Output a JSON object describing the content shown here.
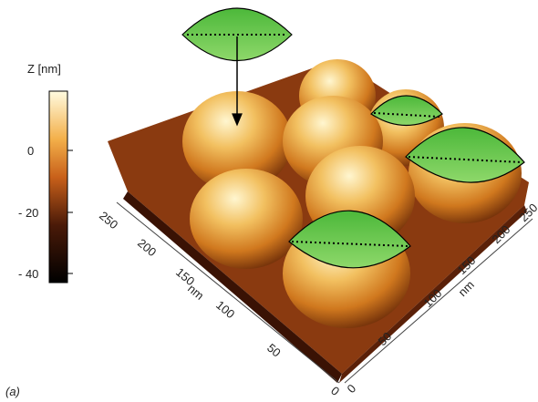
{
  "colorbar": {
    "title": "Z [nm]",
    "ticks": [
      "0",
      "- 20",
      "- 40"
    ]
  },
  "left_axis": {
    "label": "nm",
    "ticks": [
      "0",
      "50",
      "100",
      "150",
      "200",
      "250"
    ]
  },
  "right_axis": {
    "label": "nm",
    "ticks": [
      "0",
      "50",
      "100",
      "150",
      "200",
      "250"
    ]
  },
  "panel_label": "(a)"
}
